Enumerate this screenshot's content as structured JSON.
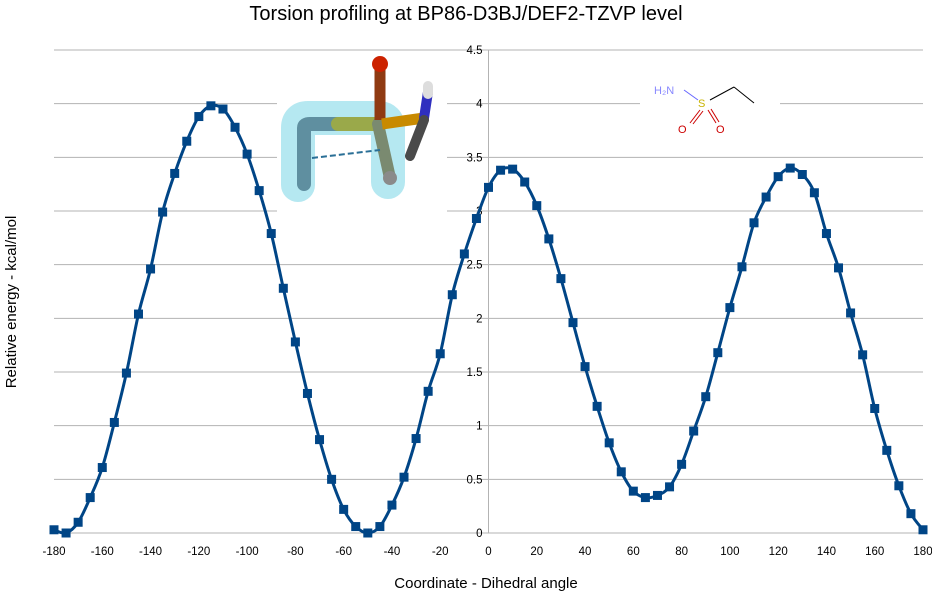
{
  "chart_data": {
    "type": "line",
    "title": "Torsion profiling at BP86-D3BJ/DEF2-TZVP level",
    "xlabel": "Coordinate - Dihedral angle",
    "ylabel": "Relative energy - kcal/mol",
    "xlim": [
      -180,
      180
    ],
    "ylim": [
      0,
      4.5
    ],
    "xticks": [
      "-180",
      "-160",
      "-140",
      "-120",
      "-100",
      "-80",
      "-60",
      "-40",
      "-20",
      "0",
      "20",
      "40",
      "60",
      "80",
      "100",
      "120",
      "140",
      "160",
      "180"
    ],
    "yticks": [
      "0",
      "0.5",
      "1",
      "1.5",
      "2",
      "2.5",
      "3",
      "3.5",
      "4",
      "4.5"
    ],
    "grid": "horizontal",
    "legend": "none",
    "line_color": "#004586",
    "x": [
      -180,
      -175,
      -170,
      -165,
      -160,
      -155,
      -150,
      -145,
      -140,
      -135,
      -130,
      -125,
      -120,
      -115,
      -110,
      -105,
      -100,
      -95,
      -90,
      -85,
      -80,
      -75,
      -70,
      -65,
      -60,
      -55,
      -50,
      -45,
      -40,
      -35,
      -30,
      -25,
      -20,
      -15,
      -10,
      -5,
      0,
      5,
      10,
      15,
      20,
      25,
      30,
      35,
      40,
      45,
      50,
      55,
      60,
      65,
      70,
      75,
      80,
      85,
      90,
      95,
      100,
      105,
      110,
      115,
      120,
      125,
      130,
      135,
      140,
      145,
      150,
      155,
      160,
      165,
      170,
      175,
      180
    ],
    "y": [
      0.03,
      0.0,
      0.1,
      0.33,
      0.61,
      1.03,
      1.49,
      2.04,
      2.46,
      2.99,
      3.35,
      3.65,
      3.88,
      3.98,
      3.95,
      3.78,
      3.53,
      3.19,
      2.79,
      2.28,
      1.78,
      1.3,
      0.87,
      0.5,
      0.22,
      0.06,
      0.0,
      0.06,
      0.26,
      0.52,
      0.88,
      1.32,
      1.67,
      2.22,
      2.6,
      2.93,
      3.22,
      3.38,
      3.39,
      3.27,
      3.05,
      2.74,
      2.37,
      1.96,
      1.55,
      1.18,
      0.84,
      0.57,
      0.39,
      0.33,
      0.35,
      0.43,
      0.64,
      0.95,
      1.27,
      1.68,
      2.1,
      2.48,
      2.89,
      3.13,
      3.32,
      3.4,
      3.34,
      3.17,
      2.79,
      2.47,
      2.05,
      1.66,
      1.16,
      0.77,
      0.44,
      0.18,
      0.03
    ]
  },
  "molecule_2d": {
    "h2n": "H₂N",
    "s": "S",
    "o1": "O",
    "o2": "O"
  }
}
